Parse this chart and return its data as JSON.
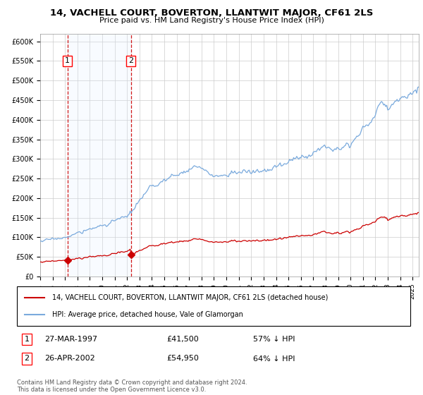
{
  "title": "14, VACHELL COURT, BOVERTON, LLANTWIT MAJOR, CF61 2LS",
  "subtitle": "Price paid vs. HM Land Registry's House Price Index (HPI)",
  "legend_line1": "14, VACHELL COURT, BOVERTON, LLANTWIT MAJOR, CF61 2LS (detached house)",
  "legend_line2": "HPI: Average price, detached house, Vale of Glamorgan",
  "sale1_date": "27-MAR-1997",
  "sale1_price": 41500,
  "sale1_pct": "57% ↓ HPI",
  "sale2_date": "26-APR-2002",
  "sale2_price": 54950,
  "sale2_pct": "64% ↓ HPI",
  "footer": "Contains HM Land Registry data © Crown copyright and database right 2024.\nThis data is licensed under the Open Government Licence v3.0.",
  "hpi_color": "#7aaadd",
  "price_color": "#cc0000",
  "bg_shade_color": "#ddeeff",
  "dashed_line_color": "#cc0000",
  "ylim": [
    0,
    620000
  ],
  "xlim_start": 1995.0,
  "xlim_end": 2025.5,
  "sale1_x": 1997.2,
  "sale2_x": 2002.3
}
